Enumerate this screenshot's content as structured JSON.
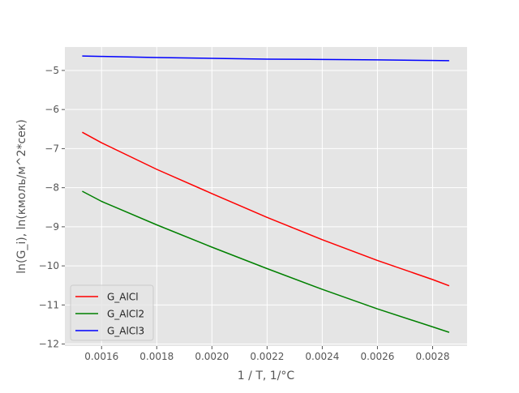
{
  "chart_data": {
    "type": "line",
    "title": "",
    "xlabel": "1 / T, 1/°C",
    "ylabel": "ln(G_i), ln(кмоль/м^2*сек)",
    "xlim": [
      0.001467,
      0.002925
    ],
    "ylim": [
      -12.05,
      -4.4
    ],
    "grid": true,
    "legend_position": "bottom-left",
    "x_ticks": [
      {
        "value": 0.0016,
        "label": "0.0016"
      },
      {
        "value": 0.0018,
        "label": "0.0018"
      },
      {
        "value": 0.002,
        "label": "0.0020"
      },
      {
        "value": 0.0022,
        "label": "0.0022"
      },
      {
        "value": 0.0024,
        "label": "0.0024"
      },
      {
        "value": 0.0026,
        "label": "0.0026"
      },
      {
        "value": 0.0028,
        "label": "0.0028"
      }
    ],
    "y_ticks": [
      {
        "value": -5,
        "label": "−5"
      },
      {
        "value": -6,
        "label": "−6"
      },
      {
        "value": -7,
        "label": "−7"
      },
      {
        "value": -8,
        "label": "−8"
      },
      {
        "value": -9,
        "label": "−9"
      },
      {
        "value": -10,
        "label": "−10"
      },
      {
        "value": -11,
        "label": "−11"
      },
      {
        "value": -12,
        "label": "−12"
      }
    ],
    "series": [
      {
        "name": "G_AlCl",
        "color": "#ff0000",
        "x": [
          0.00153,
          0.0016,
          0.0018,
          0.002,
          0.0022,
          0.0024,
          0.0026,
          0.0028,
          0.00286
        ],
        "y": [
          -6.58,
          -6.85,
          -7.53,
          -8.15,
          -8.76,
          -9.33,
          -9.86,
          -10.35,
          -10.51
        ]
      },
      {
        "name": "G_AlCl2",
        "color": "#008000",
        "x": [
          0.00153,
          0.0016,
          0.0018,
          0.002,
          0.0022,
          0.0024,
          0.0026,
          0.0028,
          0.00286
        ],
        "y": [
          -8.09,
          -8.35,
          -8.95,
          -9.52,
          -10.07,
          -10.6,
          -11.1,
          -11.56,
          -11.7
        ]
      },
      {
        "name": "G_AlCl3",
        "color": "#0000ff",
        "x": [
          0.00153,
          0.0016,
          0.0018,
          0.002,
          0.0022,
          0.0024,
          0.0026,
          0.0028,
          0.00286
        ],
        "y": [
          -4.63,
          -4.64,
          -4.67,
          -4.69,
          -4.71,
          -4.72,
          -4.73,
          -4.745,
          -4.75
        ]
      }
    ]
  }
}
